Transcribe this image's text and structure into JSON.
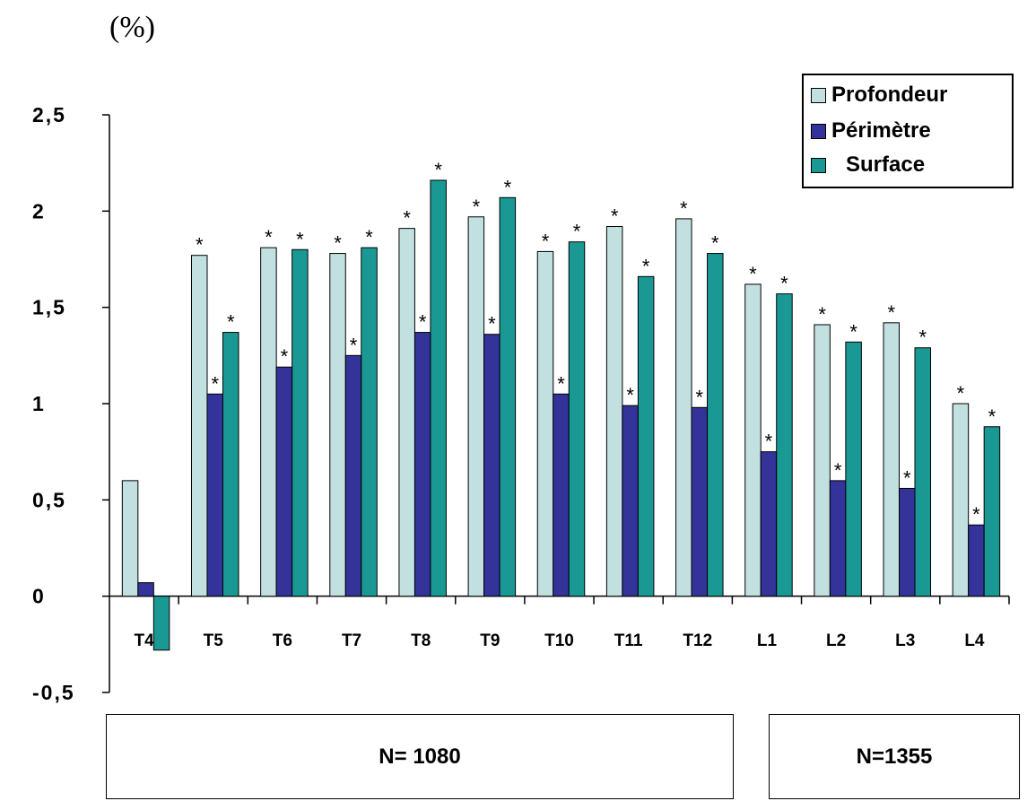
{
  "unit_label": "(%)",
  "chart_data": {
    "type": "bar",
    "categories": [
      "T4",
      "T5",
      "T6",
      "T7",
      "T8",
      "T9",
      "T10",
      "T11",
      "T12",
      "L1",
      "L2",
      "L3",
      "L4"
    ],
    "series": [
      {
        "name": "Profondeur",
        "color": "#c2e0e0",
        "values": [
          0.6,
          1.77,
          1.81,
          1.78,
          1.91,
          1.97,
          1.79,
          1.92,
          1.96,
          1.62,
          1.41,
          1.42,
          1.0
        ],
        "significant": [
          false,
          true,
          true,
          true,
          true,
          true,
          true,
          true,
          true,
          true,
          true,
          true,
          true
        ]
      },
      {
        "name": "Périmètre",
        "color": "#33339a",
        "values": [
          0.07,
          1.05,
          1.19,
          1.25,
          1.37,
          1.36,
          1.05,
          0.99,
          0.98,
          0.75,
          0.6,
          0.56,
          0.37
        ],
        "significant": [
          false,
          true,
          true,
          true,
          true,
          true,
          true,
          true,
          true,
          true,
          true,
          true,
          true
        ]
      },
      {
        "name": "Surface",
        "color": "#1a9994",
        "values": [
          -0.28,
          1.37,
          1.8,
          1.81,
          2.16,
          2.07,
          1.84,
          1.66,
          1.78,
          1.57,
          1.32,
          1.29,
          0.88
        ],
        "significant": [
          false,
          true,
          true,
          true,
          true,
          true,
          true,
          true,
          true,
          true,
          true,
          true,
          true
        ]
      }
    ],
    "significance_marker": "*",
    "yticks": [
      "-0,5",
      "0",
      "0,5",
      "1",
      "1,5",
      "2",
      "2,5"
    ],
    "ytick_values": [
      -0.5,
      0,
      0.5,
      1,
      1.5,
      2,
      2.5
    ],
    "ylim": [
      -0.5,
      2.5
    ],
    "legend_position": "top-right",
    "grid": false
  },
  "sample_groups": [
    {
      "label": "N= 1080"
    },
    {
      "label": "N=1355"
    }
  ]
}
